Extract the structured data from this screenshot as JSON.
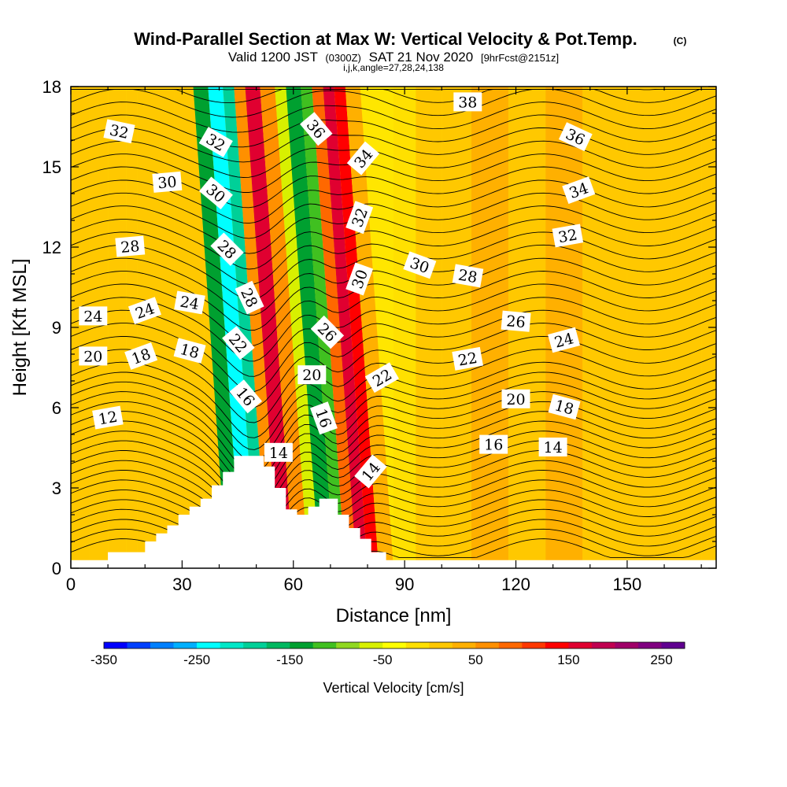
{
  "chart_data": {
    "type": "heatmap",
    "title": "Wind-Parallel Section at Max W: Vertical Velocity & Pot.Temp.",
    "title_mark": "(C)",
    "subtitle_parts": [
      "Valid 1200 JST",
      "(0300Z)",
      "SAT 21 Nov 2020",
      "[9hrFcst@2151z]"
    ],
    "subtitle2": "i,j,k,angle=27,28,24,138",
    "xlabel": "Distance [nm]",
    "ylabel": "Height [Kft MSL]",
    "xlim": [
      0,
      174
    ],
    "ylim": [
      0,
      18
    ],
    "x_ticks": [
      0,
      30,
      60,
      90,
      120,
      150
    ],
    "y_ticks": [
      0,
      3,
      6,
      9,
      12,
      15,
      18
    ],
    "grid": false,
    "colorbar": {
      "label": "Vertical Velocity [cm/s]",
      "range": [
        -350,
        275
      ],
      "tick_values": [
        -350,
        -250,
        -150,
        -50,
        50,
        150,
        250
      ],
      "colors": [
        "#0000ff",
        "#0040ff",
        "#0080ff",
        "#00b0ff",
        "#00ffff",
        "#00e8c8",
        "#00d098",
        "#00b860",
        "#00a030",
        "#40c020",
        "#90d820",
        "#d8f000",
        "#ffff00",
        "#ffe000",
        "#ffc800",
        "#ffb000",
        "#ff9000",
        "#ff6800",
        "#ff3800",
        "#ff0000",
        "#e00030",
        "#c00050",
        "#a00068",
        "#800080",
        "#600090"
      ]
    },
    "velocity_columns": [
      {
        "x": 0,
        "w": 5
      },
      {
        "x": 5,
        "w": 5
      },
      {
        "x": 10,
        "w": 5
      },
      {
        "x": 15,
        "w": 3
      },
      {
        "x": 18,
        "w": 10
      },
      {
        "x": 28,
        "w": 8
      },
      {
        "x": 36,
        "w": 6
      },
      {
        "x": 42,
        "w": -150
      },
      {
        "x": 46,
        "w": -250
      },
      {
        "x": 50,
        "w": -180
      },
      {
        "x": 53,
        "w": 60
      },
      {
        "x": 56,
        "w": 150
      },
      {
        "x": 60,
        "w": 70
      },
      {
        "x": 64,
        "w": -60
      },
      {
        "x": 67,
        "w": -140
      },
      {
        "x": 71,
        "w": -120
      },
      {
        "x": 74,
        "w": 80
      },
      {
        "x": 77,
        "w": 160
      },
      {
        "x": 80,
        "w": 140
      },
      {
        "x": 83,
        "w": 40
      },
      {
        "x": 87,
        "w": -20
      },
      {
        "x": 93,
        "w": 15
      },
      {
        "x": 100,
        "w": 10
      },
      {
        "x": 108,
        "w": 25
      },
      {
        "x": 118,
        "w": 5
      },
      {
        "x": 128,
        "w": 30
      },
      {
        "x": 138,
        "w": 10
      },
      {
        "x": 150,
        "w": 20
      },
      {
        "x": 162,
        "w": 5
      },
      {
        "x": 170,
        "w": 15
      }
    ],
    "terrain_profile": [
      [
        0,
        0.3
      ],
      [
        10,
        0.3
      ],
      [
        10,
        0.6
      ],
      [
        20,
        0.6
      ],
      [
        20,
        1.0
      ],
      [
        23,
        1.0
      ],
      [
        23,
        1.3
      ],
      [
        26,
        1.3
      ],
      [
        26,
        1.6
      ],
      [
        29,
        1.6
      ],
      [
        29,
        2.0
      ],
      [
        32,
        2.0
      ],
      [
        32,
        2.3
      ],
      [
        35,
        2.3
      ],
      [
        35,
        2.6
      ],
      [
        38,
        2.6
      ],
      [
        38,
        3.1
      ],
      [
        41,
        3.1
      ],
      [
        41,
        3.6
      ],
      [
        44,
        3.6
      ],
      [
        44,
        4.2
      ],
      [
        49,
        4.2
      ],
      [
        49,
        4.2
      ],
      [
        52,
        4.2
      ],
      [
        52,
        3.8
      ],
      [
        55,
        3.8
      ],
      [
        55,
        3.0
      ],
      [
        58,
        3.0
      ],
      [
        58,
        2.2
      ],
      [
        61,
        2.2
      ],
      [
        61,
        2.0
      ],
      [
        64,
        2.0
      ],
      [
        64,
        2.3
      ],
      [
        67,
        2.3
      ],
      [
        67,
        2.6
      ],
      [
        72,
        2.6
      ],
      [
        72,
        2.0
      ],
      [
        75,
        2.0
      ],
      [
        75,
        1.5
      ],
      [
        78,
        1.5
      ],
      [
        78,
        1.1
      ],
      [
        81,
        1.1
      ],
      [
        81,
        0.6
      ],
      [
        85,
        0.6
      ],
      [
        85,
        0.3
      ],
      [
        174,
        0.3
      ]
    ],
    "theta_levels": [
      12,
      14,
      16,
      18,
      20,
      22,
      24,
      26,
      28,
      30,
      32,
      34,
      36,
      38
    ],
    "contour_labels": [
      {
        "text": "32",
        "x": 13,
        "y": 16.3,
        "angle": 12
      },
      {
        "text": "30",
        "x": 26,
        "y": 14.4,
        "angle": -5
      },
      {
        "text": "28",
        "x": 16,
        "y": 12.0,
        "angle": -5
      },
      {
        "text": "24",
        "x": 6,
        "y": 9.4,
        "angle": 0
      },
      {
        "text": "24",
        "x": 20,
        "y": 9.6,
        "angle": -20
      },
      {
        "text": "24",
        "x": 32,
        "y": 9.9,
        "angle": 10
      },
      {
        "text": "20",
        "x": 6,
        "y": 7.9,
        "angle": 0
      },
      {
        "text": "18",
        "x": 19,
        "y": 7.9,
        "angle": -20
      },
      {
        "text": "18",
        "x": 32,
        "y": 8.1,
        "angle": 15
      },
      {
        "text": "12",
        "x": 10,
        "y": 5.6,
        "angle": -10
      },
      {
        "text": "32",
        "x": 39,
        "y": 15.9,
        "angle": 30
      },
      {
        "text": "30",
        "x": 39,
        "y": 14.0,
        "angle": 40
      },
      {
        "text": "28",
        "x": 42,
        "y": 11.9,
        "angle": 45
      },
      {
        "text": "28",
        "x": 48,
        "y": 10.1,
        "angle": 65
      },
      {
        "text": "22",
        "x": 45,
        "y": 8.4,
        "angle": 50
      },
      {
        "text": "16",
        "x": 47,
        "y": 6.4,
        "angle": 50
      },
      {
        "text": "14",
        "x": 56,
        "y": 4.3,
        "angle": 0
      },
      {
        "text": "36",
        "x": 66,
        "y": 16.4,
        "angle": 50
      },
      {
        "text": "34",
        "x": 79,
        "y": 15.3,
        "angle": -50
      },
      {
        "text": "32",
        "x": 78,
        "y": 13.1,
        "angle": -70
      },
      {
        "text": "30",
        "x": 78,
        "y": 10.8,
        "angle": -70
      },
      {
        "text": "26",
        "x": 69,
        "y": 8.8,
        "angle": 45
      },
      {
        "text": "20",
        "x": 65,
        "y": 7.2,
        "angle": 0
      },
      {
        "text": "16",
        "x": 68,
        "y": 5.6,
        "angle": 70
      },
      {
        "text": "22",
        "x": 84,
        "y": 7.1,
        "angle": -30
      },
      {
        "text": "14",
        "x": 81,
        "y": 3.6,
        "angle": -50
      },
      {
        "text": "38",
        "x": 107,
        "y": 17.4,
        "angle": 0
      },
      {
        "text": "36",
        "x": 136,
        "y": 16.1,
        "angle": 25
      },
      {
        "text": "34",
        "x": 137,
        "y": 14.1,
        "angle": -20
      },
      {
        "text": "32",
        "x": 134,
        "y": 12.4,
        "angle": -10
      },
      {
        "text": "30",
        "x": 94,
        "y": 11.3,
        "angle": 20
      },
      {
        "text": "28",
        "x": 107,
        "y": 10.9,
        "angle": 10
      },
      {
        "text": "26",
        "x": 120,
        "y": 9.2,
        "angle": 5
      },
      {
        "text": "24",
        "x": 133,
        "y": 8.5,
        "angle": -15
      },
      {
        "text": "22",
        "x": 107,
        "y": 7.8,
        "angle": -10
      },
      {
        "text": "20",
        "x": 120,
        "y": 6.3,
        "angle": 0
      },
      {
        "text": "18",
        "x": 133,
        "y": 6.0,
        "angle": 15
      },
      {
        "text": "16",
        "x": 114,
        "y": 4.6,
        "angle": 0
      },
      {
        "text": "14",
        "x": 130,
        "y": 4.5,
        "angle": 0
      }
    ]
  }
}
